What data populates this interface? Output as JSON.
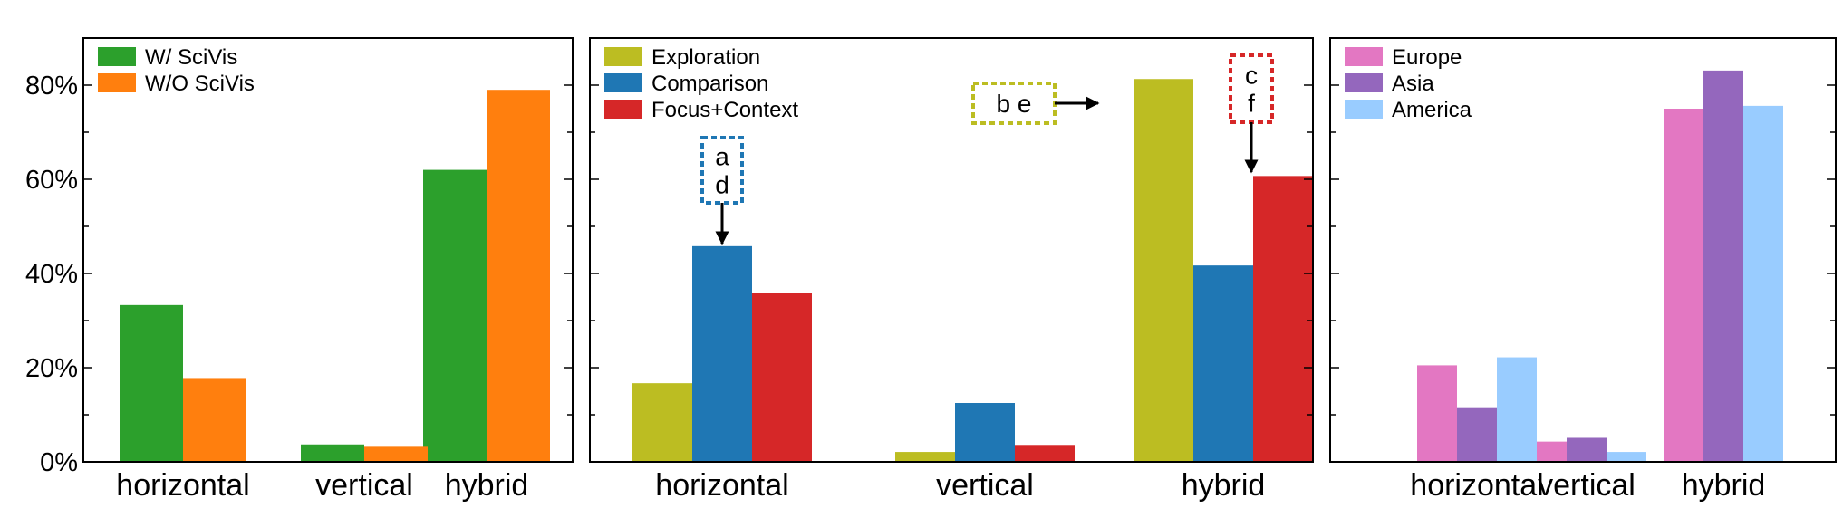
{
  "chart_data": [
    {
      "type": "bar",
      "categories": [
        "horizontal",
        "vertical",
        "hybrid"
      ],
      "ylim": [
        0,
        90
      ],
      "yticks": [
        "0%",
        "20%",
        "40%",
        "60%",
        "80%"
      ],
      "legend_position": "top-left",
      "series": [
        {
          "name": "W/ SciVis",
          "color": "#2ca02c",
          "values": [
            33.3,
            3.7,
            62
          ]
        },
        {
          "name": "W/O SciVis",
          "color": "#ff7f0e",
          "values": [
            17.8,
            3.2,
            79
          ]
        }
      ]
    },
    {
      "type": "bar",
      "categories": [
        "horizontal",
        "vertical",
        "hybrid"
      ],
      "ylim": [
        0,
        90
      ],
      "legend_position": "top-left",
      "series": [
        {
          "name": "Exploration",
          "color": "#bcbd22",
          "values": [
            16.7,
            2.1,
            81.3
          ]
        },
        {
          "name": "Comparison",
          "color": "#1f77b4",
          "values": [
            45.8,
            12.5,
            41.7
          ]
        },
        {
          "name": "Focus+Context",
          "color": "#d62728",
          "values": [
            35.8,
            3.6,
            60.7
          ]
        }
      ],
      "annotations": [
        {
          "lines": [
            "a",
            "d"
          ],
          "color": "#1f77b4",
          "target": "Comparison / horizontal"
        },
        {
          "lines": [
            "b  e"
          ],
          "color": "#bcbd22",
          "target": "Exploration / hybrid"
        },
        {
          "lines": [
            "c",
            "f"
          ],
          "color": "#d62728",
          "target": "Focus+Context / hybrid"
        }
      ]
    },
    {
      "type": "bar",
      "categories": [
        "horizontal",
        "vertical",
        "hybrid"
      ],
      "ylim": [
        0,
        90
      ],
      "legend_position": "top-left",
      "series": [
        {
          "name": "Europe",
          "color": "#e377c2",
          "values": [
            20.5,
            4.3,
            75
          ]
        },
        {
          "name": "Asia",
          "color": "#9467bd",
          "values": [
            11.6,
            5.1,
            83.1
          ]
        },
        {
          "name": "America",
          "color": "#99ccff",
          "values": [
            22.2,
            2.1,
            75.6
          ]
        }
      ]
    }
  ]
}
